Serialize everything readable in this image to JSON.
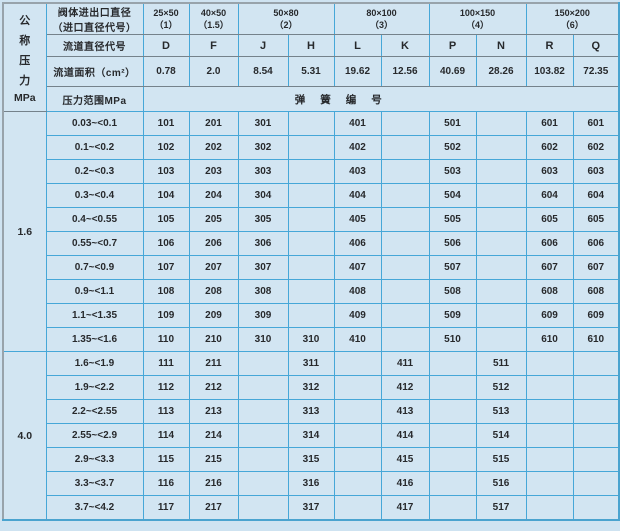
{
  "colors": {
    "background": "#cfe3f1",
    "cell_background": "#d2e5f2",
    "grid_line": "#46a7d8",
    "header_separator": "#75828b",
    "outer_border": "#4aa3cf",
    "text": "#27292c"
  },
  "table": {
    "corner": {
      "chars": [
        "公",
        "称",
        "压",
        "力"
      ],
      "unit": "MPa"
    },
    "header": {
      "valve_label_line1": "阀体进出口直径",
      "valve_label_line2": "（进口直径代号）",
      "sizes": [
        {
          "size": "25×50",
          "code": "（1）"
        },
        {
          "size": "40×50",
          "code": "（1.5）"
        },
        {
          "size": "50×80",
          "code": "（2）"
        },
        {
          "size": "80×100",
          "code": "（3）"
        },
        {
          "size": "100×150",
          "code": "（4）"
        },
        {
          "size": "150×200",
          "code": "（6）"
        }
      ],
      "channel_code_label": "流道直径代号",
      "codes": [
        "D",
        "F",
        "J",
        "H",
        "L",
        "K",
        "P",
        "N",
        "R",
        "Q"
      ],
      "area_label": "流道面积（cm²）",
      "areas": [
        "0.78",
        "2.0",
        "8.54",
        "5.31",
        "19.62",
        "12.56",
        "40.69",
        "28.26",
        "103.82",
        "72.35"
      ],
      "pressure_range_label": "压力范围MPa",
      "spring_number_label": "弹簧编号"
    },
    "sections": [
      {
        "pressure": "1.6",
        "rows": [
          {
            "range": "0.03~<0.1",
            "cells": [
              "101",
              "201",
              "301",
              "",
              "401",
              "",
              "501",
              "",
              "601",
              "601"
            ]
          },
          {
            "range": "0.1~<0.2",
            "cells": [
              "102",
              "202",
              "302",
              "",
              "402",
              "",
              "502",
              "",
              "602",
              "602"
            ]
          },
          {
            "range": "0.2~<0.3",
            "cells": [
              "103",
              "203",
              "303",
              "",
              "403",
              "",
              "503",
              "",
              "603",
              "603"
            ]
          },
          {
            "range": "0.3~<0.4",
            "cells": [
              "104",
              "204",
              "304",
              "",
              "404",
              "",
              "504",
              "",
              "604",
              "604"
            ]
          },
          {
            "range": "0.4~<0.55",
            "cells": [
              "105",
              "205",
              "305",
              "",
              "405",
              "",
              "505",
              "",
              "605",
              "605"
            ]
          },
          {
            "range": "0.55~<0.7",
            "cells": [
              "106",
              "206",
              "306",
              "",
              "406",
              "",
              "506",
              "",
              "606",
              "606"
            ]
          },
          {
            "range": "0.7~<0.9",
            "cells": [
              "107",
              "207",
              "307",
              "",
              "407",
              "",
              "507",
              "",
              "607",
              "607"
            ]
          },
          {
            "range": "0.9~<1.1",
            "cells": [
              "108",
              "208",
              "308",
              "",
              "408",
              "",
              "508",
              "",
              "608",
              "608"
            ]
          },
          {
            "range": "1.1~<1.35",
            "cells": [
              "109",
              "209",
              "309",
              "",
              "409",
              "",
              "509",
              "",
              "609",
              "609"
            ]
          },
          {
            "range": "1.35~<1.6",
            "cells": [
              "110",
              "210",
              "310",
              "310",
              "410",
              "",
              "510",
              "",
              "610",
              "610"
            ]
          }
        ]
      },
      {
        "pressure": "4.0",
        "rows": [
          {
            "range": "1.6~<1.9",
            "cells": [
              "111",
              "211",
              "",
              "311",
              "",
              "411",
              "",
              "511",
              "",
              ""
            ]
          },
          {
            "range": "1.9~<2.2",
            "cells": [
              "112",
              "212",
              "",
              "312",
              "",
              "412",
              "",
              "512",
              "",
              ""
            ]
          },
          {
            "range": "2.2~<2.55",
            "cells": [
              "113",
              "213",
              "",
              "313",
              "",
              "413",
              "",
              "513",
              "",
              ""
            ]
          },
          {
            "range": "2.55~<2.9",
            "cells": [
              "114",
              "214",
              "",
              "314",
              "",
              "414",
              "",
              "514",
              "",
              ""
            ]
          },
          {
            "range": "2.9~<3.3",
            "cells": [
              "115",
              "215",
              "",
              "315",
              "",
              "415",
              "",
              "515",
              "",
              ""
            ]
          },
          {
            "range": "3.3~<3.7",
            "cells": [
              "116",
              "216",
              "",
              "316",
              "",
              "416",
              "",
              "516",
              "",
              ""
            ]
          },
          {
            "range": "3.7~<4.2",
            "cells": [
              "117",
              "217",
              "",
              "317",
              "",
              "417",
              "",
              "517",
              "",
              ""
            ]
          }
        ]
      }
    ]
  }
}
